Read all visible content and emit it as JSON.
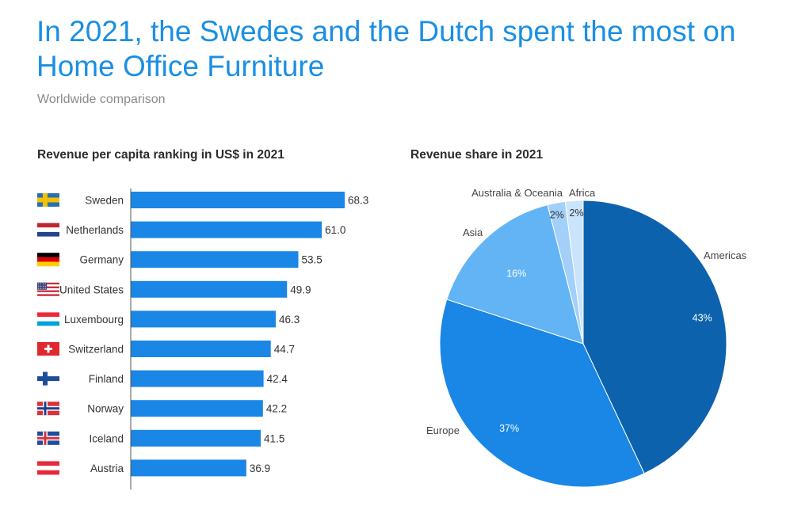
{
  "header": {
    "title": "In 2021, the Swedes and the Dutch spent the most on Home Office Furniture",
    "subtitle": "Worldwide comparison"
  },
  "colors": {
    "title": "#1a8fe3",
    "bar": "#1a86e6",
    "americas": "#0c62ad",
    "europe": "#1a86e6",
    "asia": "#62b4f5",
    "oceania": "#a2d0f8",
    "africa": "#c9e4fb"
  },
  "chart_data": [
    {
      "type": "bar",
      "orientation": "horizontal",
      "title": "Revenue per capita ranking in US$ in 2021",
      "categories": [
        "Sweden",
        "Netherlands",
        "Germany",
        "United States",
        "Luxembourg",
        "Switzerland",
        "Finland",
        "Norway",
        "Iceland",
        "Austria"
      ],
      "values": [
        68.3,
        61.0,
        53.5,
        49.9,
        46.3,
        44.7,
        42.4,
        42.2,
        41.5,
        36.9
      ],
      "value_labels": [
        "68.3",
        "61.0",
        "53.5",
        "49.9",
        "46.3",
        "44.7",
        "42.4",
        "42.2",
        "41.5",
        "36.9"
      ],
      "flags": [
        "sweden-flag-icon",
        "netherlands-flag-icon",
        "germany-flag-icon",
        "united-states-flag-icon",
        "luxembourg-flag-icon",
        "switzerland-flag-icon",
        "finland-flag-icon",
        "norway-flag-icon",
        "iceland-flag-icon",
        "austria-flag-icon"
      ],
      "xlim": [
        0,
        68.3
      ]
    },
    {
      "type": "pie",
      "title": "Revenue share in 2021",
      "labels": [
        "Americas",
        "Europe",
        "Asia",
        "Australia & Oceania",
        "Africa"
      ],
      "values": [
        43,
        37,
        16,
        2,
        2
      ],
      "value_labels": [
        "43%",
        "37%",
        "16%",
        "2%",
        "2%"
      ]
    }
  ]
}
